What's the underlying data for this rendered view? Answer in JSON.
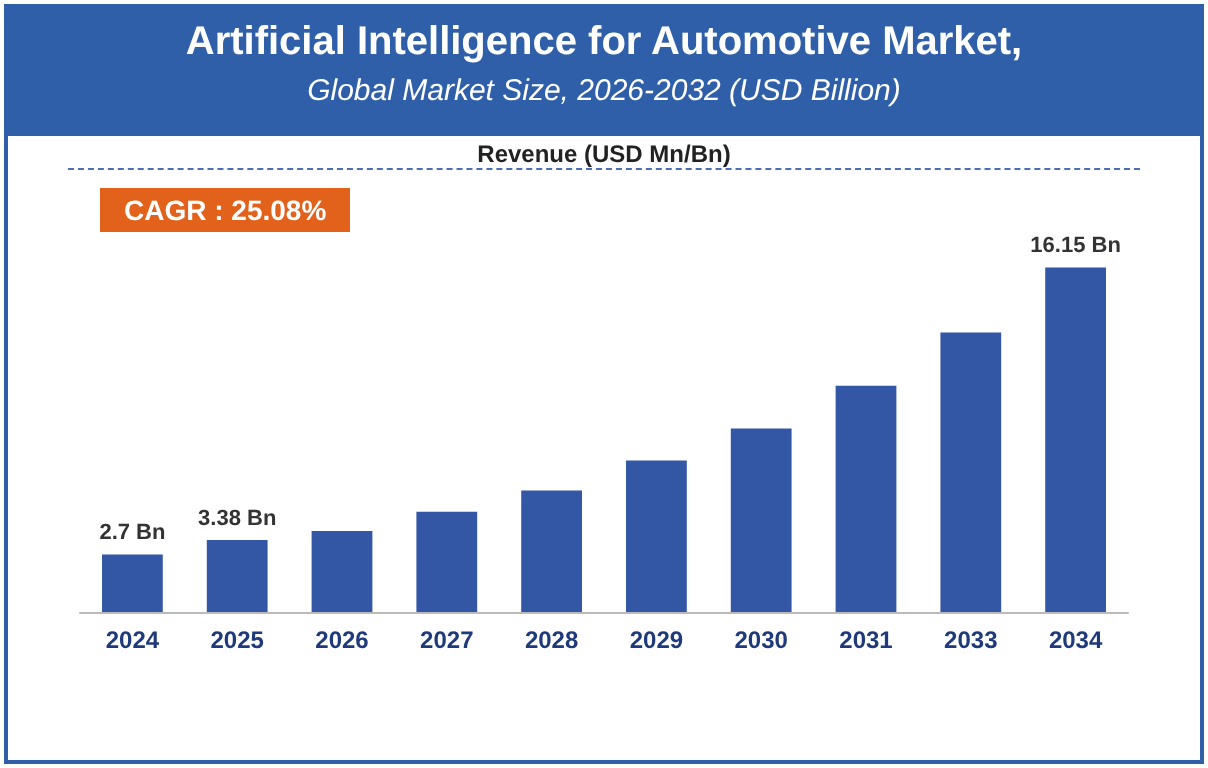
{
  "chart_data": {
    "type": "bar",
    "title": "Artificial Intelligence for Automotive Market,",
    "subtitle": "Global Market Size, 2026-2032 (USD Billion)",
    "ylabel": "Revenue (USD Mn/Bn)",
    "annotations": [
      "CAGR : 25.08%"
    ],
    "categories": [
      "2024",
      "2025",
      "2026",
      "2027",
      "2028",
      "2029",
      "2030",
      "2031",
      "2033",
      "2034"
    ],
    "values": [
      2.7,
      3.38,
      3.8,
      4.7,
      5.7,
      7.1,
      8.6,
      10.6,
      13.1,
      16.15
    ],
    "value_labels": [
      "2.7 Bn",
      "3.38 Bn",
      null,
      null,
      null,
      null,
      null,
      null,
      null,
      "16.15 Bn"
    ],
    "color": "#3457a5"
  }
}
